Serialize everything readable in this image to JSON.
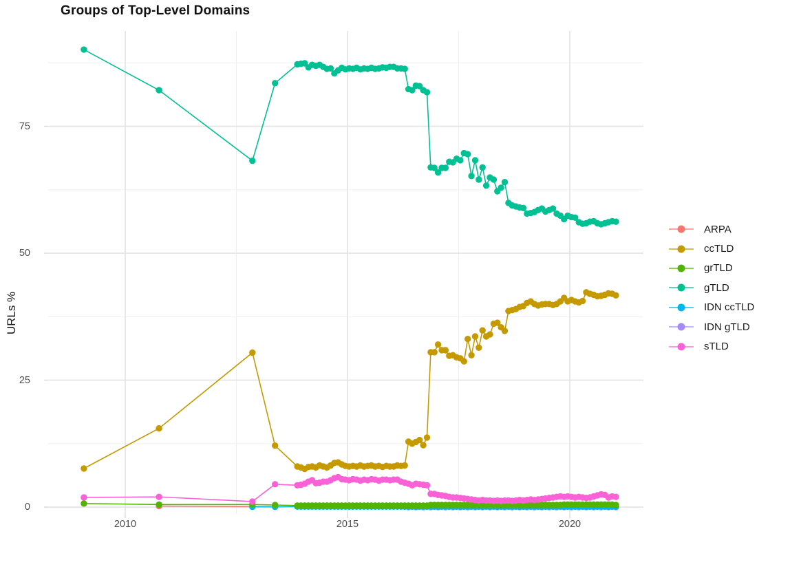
{
  "chart_data": {
    "type": "scatter",
    "mark": "point+line",
    "title": "Groups of Top-Level Domains",
    "xlabel": "",
    "ylabel": "URLs %",
    "grid": true,
    "legend_position": "right",
    "x_axis": {
      "tick_values": [
        2010,
        2015,
        2020
      ],
      "tick_labels": [
        "2010",
        "2015",
        "2020"
      ],
      "minor_tick_values": [
        2012.5,
        2017.5
      ],
      "range": [
        2008.3,
        2021.7
      ]
    },
    "y_axis": {
      "tick_values": [
        0,
        25,
        50,
        75
      ],
      "tick_labels": [
        "0",
        "25",
        "50",
        "75"
      ],
      "minor_tick_values": [
        12.5,
        37.5,
        62.5,
        87.5
      ],
      "range": [
        -1.4,
        93.8
      ]
    },
    "series": [
      {
        "name": "ARPA",
        "color": "#F8766D",
        "z": 1,
        "early_points": [
          [
            2010.76,
            0.2
          ],
          [
            2012.86,
            0.1
          ],
          [
            2013.37,
            0.05
          ]
        ],
        "monthly": null
      },
      {
        "name": "ccTLD",
        "color": "#C49A00",
        "z": 5,
        "early_points": [
          [
            2009.07,
            7.6
          ],
          [
            2010.76,
            15.5
          ],
          [
            2012.86,
            30.4
          ],
          [
            2013.37,
            12.1
          ]
        ],
        "monthly": {
          "start": 2013.871,
          "step": 0.08333,
          "values": [
            8.0,
            7.8,
            7.5,
            7.9,
            8.0,
            7.8,
            8.2,
            8.0,
            7.8,
            8.2,
            8.7,
            8.8,
            8.4,
            8.1,
            8.0,
            8.1,
            8.0,
            8.2,
            8.0,
            8.1,
            8.2,
            8.0,
            8.1,
            7.9,
            8.1,
            8.0,
            8.0,
            8.2,
            8.1,
            8.2,
            12.9,
            12.5,
            12.8,
            13.2,
            12.2,
            13.7,
            30.5,
            30.5,
            32.0,
            30.9,
            30.9,
            29.8,
            29.9,
            29.5,
            29.3,
            28.7,
            33.1,
            29.9,
            33.6,
            31.4,
            34.8,
            33.6,
            34.0,
            36.1,
            36.3,
            35.4,
            34.7,
            38.6,
            38.8,
            39.0,
            39.4,
            39.6,
            40.2,
            40.5,
            40.0,
            39.7,
            39.9,
            40.0,
            40.0,
            39.8,
            40.0,
            40.5,
            41.2,
            40.5,
            40.8,
            40.5,
            40.3,
            40.6,
            42.3,
            42.0,
            41.8,
            41.5,
            41.6,
            41.8,
            42.1,
            42.0,
            41.7
          ]
        }
      },
      {
        "name": "grTLD",
        "color": "#53B400",
        "z": 4,
        "early_points": [
          [
            2009.07,
            0.7
          ],
          [
            2010.76,
            0.5
          ],
          [
            2012.86,
            0.5
          ],
          [
            2013.37,
            0.4
          ]
        ],
        "monthly": {
          "start": 2013.871,
          "step": 0.08333,
          "values": [
            0.3,
            0.3,
            0.3,
            0.3,
            0.3,
            0.3,
            0.3,
            0.3,
            0.3,
            0.3,
            0.3,
            0.3,
            0.3,
            0.3,
            0.3,
            0.3,
            0.3,
            0.3,
            0.3,
            0.3,
            0.3,
            0.3,
            0.3,
            0.3,
            0.3,
            0.3,
            0.3,
            0.3,
            0.3,
            0.3,
            0.3,
            0.3,
            0.3,
            0.3,
            0.3,
            0.3,
            0.4,
            0.4,
            0.4,
            0.4,
            0.4,
            0.4,
            0.4,
            0.4,
            0.4,
            0.4,
            0.4,
            0.4,
            0.4,
            0.4,
            0.4,
            0.4,
            0.4,
            0.4,
            0.4,
            0.4,
            0.4,
            0.4,
            0.4,
            0.4,
            0.4,
            0.4,
            0.4,
            0.4,
            0.4,
            0.4,
            0.4,
            0.4,
            0.4,
            0.4,
            0.4,
            0.4,
            0.5,
            0.5,
            0.5,
            0.5,
            0.5,
            0.5,
            0.5,
            0.5,
            0.5,
            0.5,
            0.5,
            0.5,
            0.5,
            0.5,
            0.4
          ]
        }
      },
      {
        "name": "gTLD",
        "color": "#00C094",
        "z": 6,
        "early_points": [
          [
            2009.07,
            90.1
          ],
          [
            2010.76,
            82.1
          ],
          [
            2012.86,
            68.2
          ],
          [
            2013.37,
            83.5
          ]
        ],
        "monthly": {
          "start": 2013.871,
          "step": 0.08333,
          "values": [
            87.2,
            87.3,
            87.4,
            86.6,
            87.1,
            86.9,
            87.1,
            86.7,
            86.3,
            86.4,
            85.4,
            86.0,
            86.5,
            86.2,
            86.4,
            86.3,
            86.5,
            86.2,
            86.4,
            86.3,
            86.5,
            86.3,
            86.4,
            86.6,
            86.5,
            86.7,
            86.7,
            86.4,
            86.4,
            86.3,
            82.3,
            82.1,
            83.0,
            82.9,
            82.1,
            81.7,
            66.9,
            66.8,
            65.9,
            66.8,
            66.8,
            68.0,
            67.9,
            68.6,
            68.3,
            69.7,
            69.5,
            65.2,
            68.3,
            64.5,
            66.9,
            63.3,
            64.9,
            64.5,
            62.2,
            62.9,
            64.0,
            59.9,
            59.4,
            59.2,
            59.0,
            58.9,
            57.8,
            57.9,
            58.1,
            58.5,
            58.8,
            58.2,
            58.5,
            58.8,
            57.8,
            57.4,
            56.7,
            57.4,
            57.1,
            57.0,
            56.1,
            55.8,
            55.9,
            56.2,
            56.3,
            55.9,
            55.7,
            55.9,
            56.1,
            56.3,
            56.2
          ]
        }
      },
      {
        "name": "IDN ccTLD",
        "color": "#00B6EB",
        "z": 3,
        "early_points": [
          [
            2012.86,
            0.05
          ],
          [
            2013.37,
            0.05
          ]
        ],
        "monthly": {
          "start": 2013.871,
          "step": 0.08333,
          "values": [
            0.1,
            0.1,
            0.1,
            0.1,
            0.1,
            0.1,
            0.1,
            0.1,
            0.1,
            0.1,
            0.1,
            0.1,
            0.1,
            0.1,
            0.1,
            0.1,
            0.1,
            0.1,
            0.1,
            0.1,
            0.1,
            0.1,
            0.1,
            0.1,
            0.1,
            0.1,
            0.1,
            0.1,
            0.1,
            0.1,
            0.1,
            0.1,
            0.1,
            0.1,
            0.1,
            0.1,
            0.1,
            0.1,
            0.1,
            0.1,
            0.1,
            0.1,
            0.1,
            0.1,
            0.1,
            0.1,
            0.1,
            0.1,
            0.1,
            0.1,
            0.1,
            0.1,
            0.1,
            0.1,
            0.1,
            0.1,
            0.1,
            0.1,
            0.1,
            0.1,
            0.1,
            0.1,
            0.1,
            0.1,
            0.1,
            0.1,
            0.1,
            0.1,
            0.1,
            0.1,
            0.1,
            0.1,
            0.1,
            0.1,
            0.1,
            0.1,
            0.1,
            0.1,
            0.1,
            0.1,
            0.1,
            0.1,
            0.1,
            0.1,
            0.1,
            0.1,
            0.1
          ]
        }
      },
      {
        "name": "IDN gTLD",
        "color": "#A58AFF",
        "z": 2,
        "early_points": [],
        "monthly": {
          "start": 2016.288,
          "step": 0.08333,
          "values": [
            0.1,
            0.0,
            0.1,
            0.0,
            0.1,
            0.0,
            0.1,
            0.0,
            0.1,
            0.0,
            0.1,
            0.0,
            0.1,
            0.0,
            0.1,
            0.0,
            0.1,
            0.0,
            0.1,
            0.0,
            0.1,
            0.0,
            0.1,
            0.0,
            0.1,
            0.0,
            0.1,
            0.0,
            0.1,
            0.0,
            0.1,
            0.0,
            0.1,
            0.0,
            0.1,
            0.0,
            0.1,
            0.0,
            0.1,
            0.0,
            0.1,
            0.0,
            0.1,
            0.0,
            0.1,
            0.0,
            0.1,
            0.0,
            0.1,
            0.0,
            0.1,
            0.0,
            0.1,
            0.0,
            0.1,
            0.0,
            0.1,
            0.0
          ]
        }
      },
      {
        "name": "sTLD",
        "color": "#FB61D7",
        "z": 7,
        "early_points": [
          [
            2009.07,
            1.9
          ],
          [
            2010.76,
            2.0
          ],
          [
            2012.86,
            1.1
          ],
          [
            2013.37,
            4.5
          ]
        ],
        "monthly": {
          "start": 2013.871,
          "step": 0.08333,
          "values": [
            4.3,
            4.4,
            4.6,
            5.0,
            5.3,
            4.7,
            4.8,
            5.0,
            5.0,
            5.3,
            5.7,
            5.9,
            5.5,
            5.4,
            5.3,
            5.5,
            5.4,
            5.2,
            5.4,
            5.3,
            5.5,
            5.4,
            5.2,
            5.4,
            5.4,
            5.3,
            5.4,
            5.4,
            5.0,
            4.8,
            4.6,
            4.3,
            4.6,
            4.5,
            4.4,
            4.3,
            2.6,
            2.6,
            2.4,
            2.3,
            2.2,
            2.0,
            1.9,
            1.9,
            1.8,
            1.7,
            1.6,
            1.5,
            1.4,
            1.3,
            1.4,
            1.3,
            1.3,
            1.2,
            1.3,
            1.2,
            1.3,
            1.3,
            1.2,
            1.3,
            1.4,
            1.3,
            1.4,
            1.5,
            1.4,
            1.5,
            1.6,
            1.7,
            1.8,
            1.9,
            2.0,
            2.1,
            2.0,
            2.1,
            2.0,
            1.9,
            2.0,
            1.9,
            1.8,
            1.9,
            2.1,
            2.3,
            2.5,
            2.4,
            1.9,
            2.1,
            2.0
          ]
        }
      }
    ],
    "legend_labels": [
      "ARPA",
      "ccTLD",
      "grTLD",
      "gTLD",
      "IDN ccTLD",
      "IDN gTLD",
      "sTLD"
    ],
    "style_colors": {
      "grid_major": "#e4e4e4",
      "grid_minor": "#f0f0f0",
      "tick_mark": "#d9d9d9",
      "tick_label": "#4d4d4d",
      "title_text": "#111111"
    }
  }
}
